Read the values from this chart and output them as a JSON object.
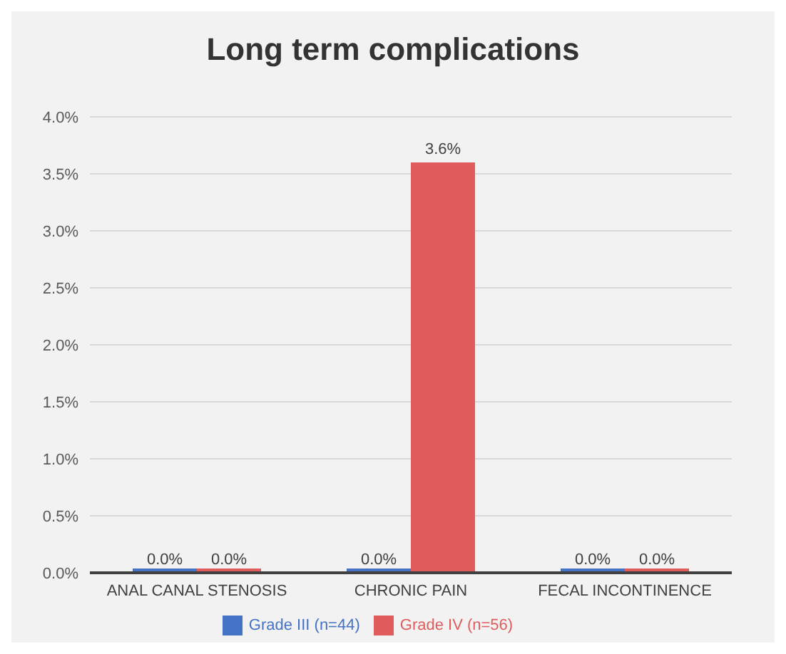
{
  "chart_data": {
    "type": "bar",
    "title": "Long term complications",
    "categories": [
      "ANAL CANAL STENOSIS",
      "CHRONIC PAIN",
      "FECAL INCONTINENCE"
    ],
    "series": [
      {
        "name": "Grade III (n=44)",
        "color": "#4472c4",
        "values": [
          0,
          0,
          0
        ],
        "value_labels": [
          "0.0%",
          "0.0%",
          "0.0%"
        ]
      },
      {
        "name": "Grade IV (n=56)",
        "color": "#e05c5c",
        "values": [
          0,
          3.6,
          0
        ],
        "value_labels": [
          "0.0%",
          "3.6%",
          "0.0%"
        ]
      }
    ],
    "ylim": [
      0,
      4
    ],
    "yticks": [
      {
        "value": 0,
        "label": "0.0%"
      },
      {
        "value": 0.5,
        "label": "0.5%"
      },
      {
        "value": 1,
        "label": "1.0%"
      },
      {
        "value": 1.5,
        "label": "1.5%"
      },
      {
        "value": 2,
        "label": "2.0%"
      },
      {
        "value": 2.5,
        "label": "2.5%"
      },
      {
        "value": 3,
        "label": "3.0%"
      },
      {
        "value": 3.5,
        "label": "3.5%"
      },
      {
        "value": 4,
        "label": "4.0%"
      }
    ],
    "grid": "y",
    "legend": "bottom"
  }
}
